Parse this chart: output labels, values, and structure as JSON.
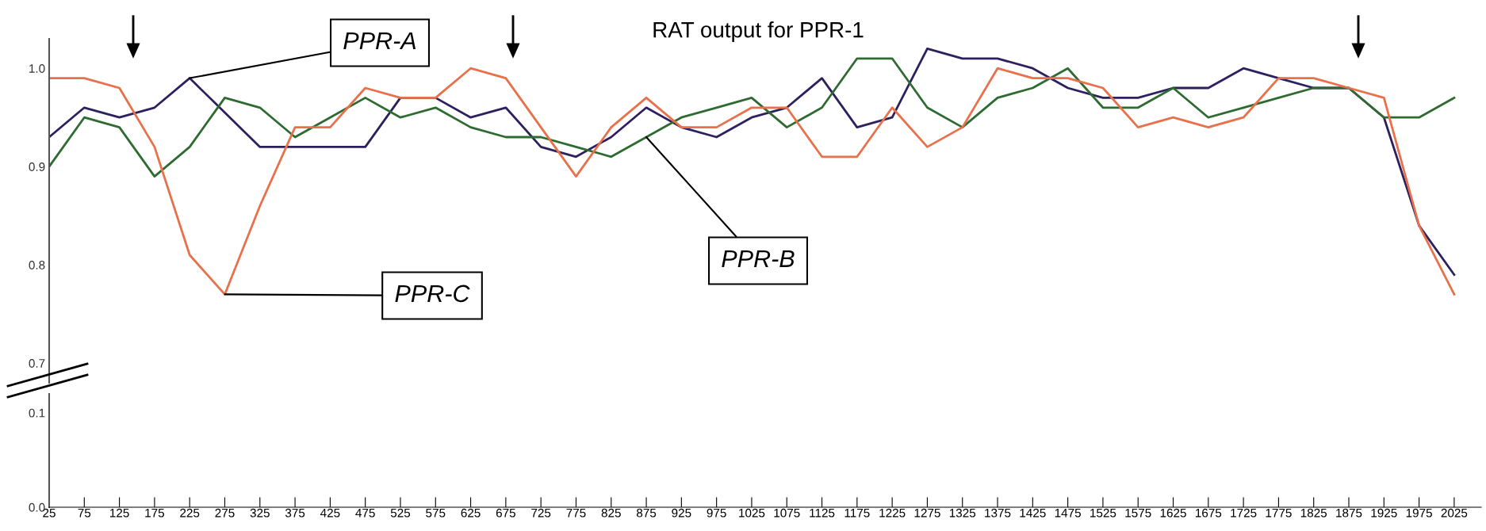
{
  "chart_data": [
    {
      "type": "line",
      "title": "RAT output for PPR-1",
      "categories": [
        "25",
        "75",
        "125",
        "175",
        "225",
        "275",
        "325",
        "375",
        "425",
        "475",
        "525",
        "575",
        "625",
        "675",
        "725",
        "775",
        "825",
        "875",
        "925",
        "975",
        "1025",
        "1075",
        "1125",
        "1175",
        "1225",
        "1275",
        "1325",
        "1375",
        "1425",
        "1475",
        "1525",
        "1575",
        "1625",
        "1675",
        "1725",
        "1775",
        "1825",
        "1875",
        "1925",
        "1975",
        "2025"
      ],
      "series": [
        {
          "name": "PPR-A",
          "color": "#2e1f5e",
          "values": [
            0.93,
            0.96,
            0.95,
            0.96,
            0.99,
            0.955,
            0.92,
            0.92,
            0.92,
            0.92,
            0.97,
            0.97,
            0.95,
            0.96,
            0.92,
            0.91,
            0.93,
            0.96,
            0.94,
            0.93,
            0.95,
            0.96,
            0.99,
            0.94,
            0.95,
            1.02,
            1.01,
            1.01,
            1.0,
            0.98,
            0.97,
            0.97,
            0.98,
            0.98,
            1.0,
            0.99,
            0.98,
            0.98,
            0.95,
            0.84,
            0.79
          ]
        },
        {
          "name": "PPR-B",
          "color": "#2e6b30",
          "values": [
            0.9,
            0.95,
            0.94,
            0.89,
            0.92,
            0.97,
            0.96,
            0.93,
            0.95,
            0.97,
            0.95,
            0.96,
            0.94,
            0.93,
            0.93,
            0.92,
            0.91,
            0.93,
            0.95,
            0.96,
            0.97,
            0.94,
            0.96,
            1.01,
            1.01,
            0.96,
            0.94,
            0.97,
            0.98,
            1.0,
            0.96,
            0.96,
            0.98,
            0.95,
            0.96,
            0.97,
            0.98,
            0.98,
            0.95,
            0.95,
            0.97
          ]
        },
        {
          "name": "PPR-C",
          "color": "#e8704a",
          "values": [
            0.99,
            0.99,
            0.98,
            0.92,
            0.81,
            0.77,
            0.86,
            0.94,
            0.94,
            0.98,
            0.97,
            0.97,
            1.0,
            0.99,
            0.94,
            0.89,
            0.94,
            0.97,
            0.94,
            0.94,
            0.96,
            0.96,
            0.91,
            0.91,
            0.96,
            0.92,
            0.94,
            1.0,
            0.99,
            0.99,
            0.98,
            0.94,
            0.95,
            0.94,
            0.95,
            0.99,
            0.99,
            0.98,
            0.97,
            0.84,
            0.77
          ]
        }
      ],
      "ylim": [
        0.68,
        1.03
      ],
      "yticks": [
        {
          "value": 0.7,
          "label": "0.7"
        },
        {
          "value": 0.8,
          "label": "0.8"
        },
        {
          "value": 0.9,
          "label": "0.9"
        },
        {
          "value": 1.0,
          "label": "1.0"
        }
      ],
      "tick_labels": "y",
      "grid": false,
      "legend": false
    },
    {
      "type": "line",
      "categories": [
        "25",
        "75",
        "125",
        "175",
        "225",
        "275",
        "325",
        "375",
        "425",
        "475",
        "525",
        "575",
        "625",
        "675",
        "725",
        "775",
        "825",
        "875",
        "925",
        "975",
        "1025",
        "1075",
        "1125",
        "1175",
        "1225",
        "1275",
        "1325",
        "1375",
        "1425",
        "1475",
        "1525",
        "1575",
        "1625",
        "1675",
        "1725",
        "1775",
        "1825",
        "1875",
        "1925",
        "1975",
        "2025"
      ],
      "ylim": [
        0,
        0.12
      ],
      "yticks": [
        {
          "value": 0,
          "label": "0.0"
        },
        {
          "value": 0.1,
          "label": "0.1"
        }
      ],
      "grid": false,
      "legend": false
    }
  ]
}
